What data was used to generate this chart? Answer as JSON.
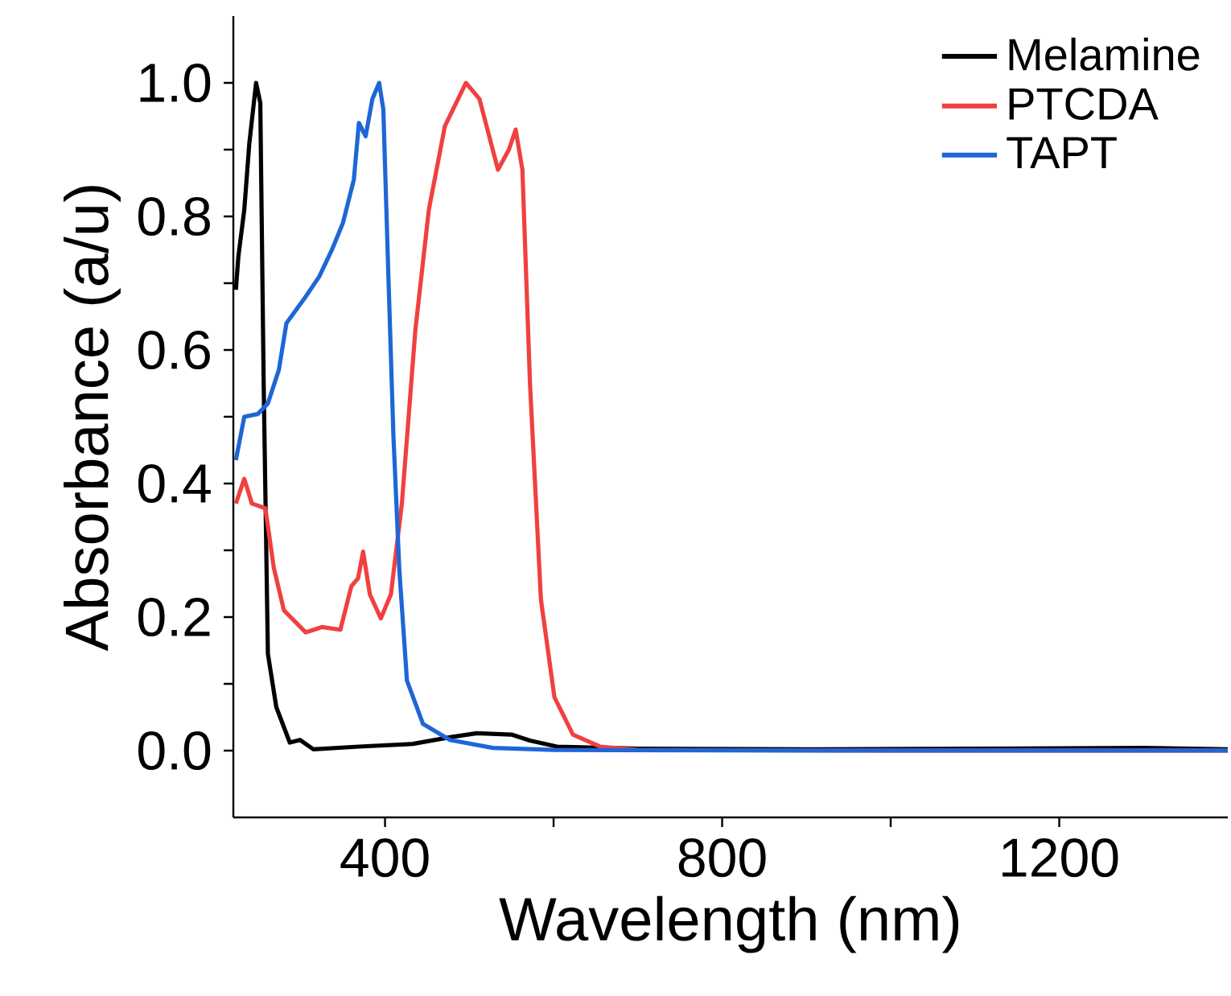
{
  "chart_data": {
    "type": "line",
    "xlabel": "Wavelength (nm)",
    "ylabel": "Absorbance (a/u)",
    "xlim": [
      220,
      1400
    ],
    "ylim": [
      -0.1,
      1.1
    ],
    "xticks": [
      400,
      {
        "value": 600,
        "label": null
      },
      800,
      {
        "value": 1000,
        "label": null
      },
      1200
    ],
    "yticks": [
      {
        "value": 0,
        "label": "0.0"
      },
      {
        "value": 0.1,
        "label": null
      },
      {
        "value": 0.2,
        "label": "0.2"
      },
      {
        "value": 0.3,
        "label": null
      },
      {
        "value": 0.4,
        "label": "0.4"
      },
      {
        "value": 0.5,
        "label": null
      },
      {
        "value": 0.6,
        "label": "0.6"
      },
      {
        "value": 0.7,
        "label": null
      },
      {
        "value": 0.8,
        "label": "0.8"
      },
      {
        "value": 0.9,
        "label": null
      },
      {
        "value": 1.0,
        "label": "1.0"
      }
    ],
    "legend": "top right",
    "grid": false,
    "marker": "none",
    "line_style": "solid",
    "series": [
      {
        "name": "Melamine",
        "color": "#000000",
        "x": [
          223,
          226,
          233,
          239,
          247,
          252,
          256,
          261,
          271,
          287,
          299,
          315,
          369,
          433,
          477,
          509,
          550,
          572,
          604,
          700,
          900,
          1100,
          1300,
          1400
        ],
        "values": [
          0.69,
          0.74,
          0.81,
          0.91,
          1.0,
          0.97,
          0.55,
          0.145,
          0.065,
          0.012,
          0.016,
          0.002,
          0.006,
          0.01,
          0.02,
          0.026,
          0.024,
          0.015,
          0.006,
          0.003,
          0.002,
          0.003,
          0.004,
          0.002
        ]
      },
      {
        "name": "PTCDA",
        "color": "#f04040",
        "x": [
          223,
          233,
          242,
          258,
          268,
          280,
          306,
          325,
          347,
          360,
          368,
          374,
          382,
          395,
          407,
          420,
          436,
          452,
          471,
          496,
          512,
          534,
          547,
          555,
          563,
          572,
          585,
          601,
          623,
          655,
          700,
          1000,
          1400
        ],
        "values": [
          0.37,
          0.407,
          0.37,
          0.363,
          0.274,
          0.21,
          0.177,
          0.185,
          0.181,
          0.246,
          0.258,
          0.298,
          0.234,
          0.198,
          0.234,
          0.37,
          0.63,
          0.81,
          0.935,
          1.0,
          0.976,
          0.87,
          0.9,
          0.93,
          0.87,
          0.55,
          0.226,
          0.08,
          0.024,
          0.006,
          0.001,
          0.0,
          0.0
        ]
      },
      {
        "name": "TAPT",
        "color": "#1f66d6",
        "x": [
          223,
          233,
          249,
          261,
          274,
          283,
          306,
          322,
          337,
          350,
          363,
          369,
          377,
          385,
          393,
          398,
          404,
          410,
          417,
          426,
          445,
          477,
          528,
          600,
          1000,
          1400
        ],
        "values": [
          0.435,
          0.5,
          0.504,
          0.52,
          0.57,
          0.64,
          0.68,
          0.71,
          0.75,
          0.79,
          0.855,
          0.94,
          0.92,
          0.976,
          1.0,
          0.96,
          0.71,
          0.47,
          0.27,
          0.105,
          0.04,
          0.016,
          0.004,
          0.001,
          0.0,
          0.0
        ]
      }
    ]
  }
}
